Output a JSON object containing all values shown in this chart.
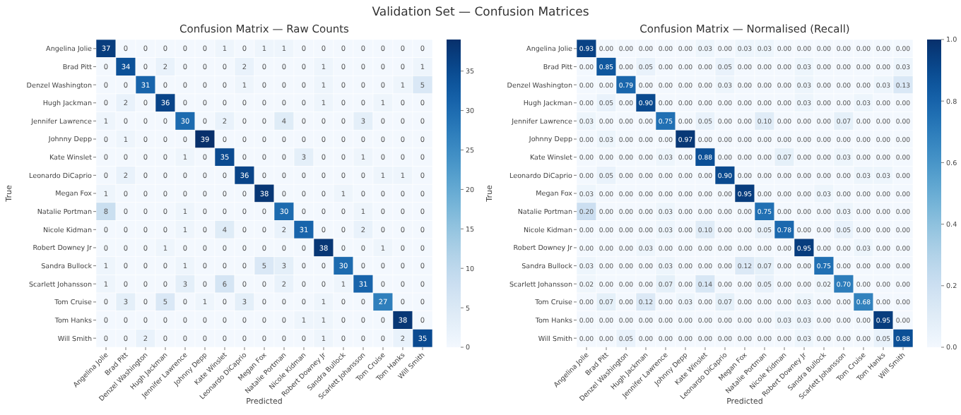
{
  "chart_data": [
    {
      "type": "heatmap",
      "title": "Confusion Matrix — Raw Counts",
      "xlabel": "Predicted",
      "ylabel": "True",
      "annotations": [
        "Validation Set — Confusion Matrices"
      ],
      "categories": [
        "Angelina Jolie",
        "Brad Pitt",
        "Denzel Washington",
        "Hugh Jackman",
        "Jennifer Lawrence",
        "Johnny Depp",
        "Kate Winslet",
        "Leonardo DiCaprio",
        "Megan Fox",
        "Natalie Portman",
        "Nicole Kidman",
        "Robert Downey Jr",
        "Sandra Bullock",
        "Scarlett Johansson",
        "Tom Cruise",
        "Tom Hanks",
        "Will Smith"
      ],
      "y_categories": [
        "Angelina Jolie",
        "Brad Pitt",
        "Denzel Washington",
        "Hugh Jackman",
        "Jennifer Lawrence",
        "Johnny Depp",
        "Kate Winslet",
        "Leonardo DiCaprio",
        "Megan Fox",
        "Natalie Portman",
        "Nicole Kidman",
        "Robert Downey Jr",
        "Sandra Bullock",
        "Scarlett Johansson",
        "Tom Cruise",
        "Tom Hanks",
        "Will Smith"
      ],
      "cells": [
        [
          37,
          0,
          0,
          0,
          0,
          0,
          1,
          0,
          1,
          1,
          0,
          0,
          0,
          0,
          0,
          0,
          0
        ],
        [
          0,
          34,
          0,
          2,
          0,
          0,
          0,
          2,
          0,
          0,
          0,
          1,
          0,
          0,
          0,
          0,
          1
        ],
        [
          0,
          0,
          31,
          0,
          0,
          0,
          0,
          1,
          0,
          0,
          0,
          1,
          0,
          0,
          0,
          1,
          5
        ],
        [
          0,
          2,
          0,
          36,
          0,
          0,
          0,
          0,
          0,
          0,
          0,
          1,
          0,
          0,
          1,
          0,
          0
        ],
        [
          1,
          0,
          0,
          0,
          30,
          0,
          2,
          0,
          0,
          4,
          0,
          0,
          0,
          3,
          0,
          0,
          0
        ],
        [
          0,
          1,
          0,
          0,
          0,
          39,
          0,
          0,
          0,
          0,
          0,
          0,
          0,
          0,
          0,
          0,
          0
        ],
        [
          0,
          0,
          0,
          0,
          1,
          0,
          35,
          0,
          0,
          0,
          3,
          0,
          0,
          1,
          0,
          0,
          0
        ],
        [
          0,
          2,
          0,
          0,
          0,
          0,
          0,
          36,
          0,
          0,
          0,
          0,
          0,
          0,
          1,
          1,
          0
        ],
        [
          1,
          0,
          0,
          0,
          0,
          0,
          0,
          0,
          38,
          0,
          0,
          0,
          1,
          0,
          0,
          0,
          0
        ],
        [
          8,
          0,
          0,
          0,
          1,
          0,
          0,
          0,
          0,
          30,
          0,
          0,
          0,
          1,
          0,
          0,
          0
        ],
        [
          0,
          0,
          0,
          0,
          1,
          0,
          4,
          0,
          0,
          2,
          31,
          0,
          0,
          2,
          0,
          0,
          0
        ],
        [
          0,
          0,
          0,
          1,
          0,
          0,
          0,
          0,
          0,
          0,
          0,
          38,
          0,
          0,
          1,
          0,
          0
        ],
        [
          1,
          0,
          0,
          0,
          1,
          0,
          0,
          0,
          5,
          3,
          0,
          0,
          30,
          0,
          0,
          0,
          0
        ],
        [
          1,
          0,
          0,
          0,
          3,
          0,
          6,
          0,
          0,
          2,
          0,
          0,
          1,
          31,
          0,
          0,
          0
        ],
        [
          0,
          3,
          0,
          5,
          0,
          1,
          0,
          3,
          0,
          0,
          0,
          1,
          0,
          0,
          27,
          0,
          0
        ],
        [
          0,
          0,
          0,
          0,
          0,
          0,
          0,
          0,
          0,
          0,
          1,
          1,
          0,
          0,
          0,
          38,
          0
        ],
        [
          0,
          0,
          2,
          0,
          0,
          0,
          0,
          0,
          0,
          0,
          0,
          1,
          0,
          0,
          0,
          2,
          35
        ]
      ],
      "data_labels": true,
      "clim": [
        0,
        39
      ],
      "cticks": [
        0,
        5,
        10,
        15,
        20,
        25,
        30,
        35
      ]
    },
    {
      "type": "heatmap",
      "title": "Confusion Matrix — Normalised (Recall)",
      "xlabel": "Predicted",
      "ylabel": "True",
      "categories": [
        "Angelina Jolie",
        "Brad Pitt",
        "Denzel Washington",
        "Hugh Jackman",
        "Jennifer Lawrence",
        "Johnny Depp",
        "Kate Winslet",
        "Leonardo DiCaprio",
        "Megan Fox",
        "Natalie Portman",
        "Nicole Kidman",
        "Robert Downey Jr",
        "Sandra Bullock",
        "Scarlett Johansson",
        "Tom Cruise",
        "Tom Hanks",
        "Will Smith"
      ],
      "y_categories": [
        "Angelina Jolie",
        "Brad Pitt",
        "Denzel Washington",
        "Hugh Jackman",
        "Jennifer Lawrence",
        "Johnny Depp",
        "Kate Winslet",
        "Leonardo DiCaprio",
        "Megan Fox",
        "Natalie Portman",
        "Nicole Kidman",
        "Robert Downey Jr",
        "Sandra Bullock",
        "Scarlett Johansson",
        "Tom Cruise",
        "Tom Hanks",
        "Will Smith"
      ],
      "cells": [
        [
          0.93,
          0,
          0,
          0,
          0,
          0,
          0.03,
          0,
          0.03,
          0.03,
          0,
          0,
          0,
          0,
          0,
          0,
          0
        ],
        [
          0,
          0.85,
          0,
          0.05,
          0,
          0,
          0,
          0.05,
          0,
          0,
          0,
          0.03,
          0,
          0,
          0,
          0,
          0.03
        ],
        [
          0,
          0,
          0.79,
          0,
          0,
          0,
          0,
          0.03,
          0,
          0,
          0,
          0.03,
          0,
          0,
          0,
          0.03,
          0.13
        ],
        [
          0,
          0.05,
          0,
          0.9,
          0,
          0,
          0,
          0,
          0,
          0,
          0,
          0.03,
          0,
          0,
          0.03,
          0,
          0
        ],
        [
          0.03,
          0,
          0,
          0,
          0.75,
          0,
          0.05,
          0,
          0,
          0.1,
          0,
          0,
          0,
          0.07,
          0,
          0,
          0
        ],
        [
          0,
          0.03,
          0,
          0,
          0,
          0.97,
          0,
          0,
          0,
          0,
          0,
          0,
          0,
          0,
          0,
          0,
          0
        ],
        [
          0,
          0,
          0,
          0,
          0.03,
          0,
          0.88,
          0,
          0,
          0,
          0.07,
          0,
          0,
          0.03,
          0,
          0,
          0
        ],
        [
          0,
          0.05,
          0,
          0,
          0,
          0,
          0,
          0.9,
          0,
          0,
          0,
          0,
          0,
          0,
          0.03,
          0.03,
          0
        ],
        [
          0.03,
          0,
          0,
          0,
          0,
          0,
          0,
          0,
          0.95,
          0,
          0,
          0,
          0.03,
          0,
          0,
          0,
          0
        ],
        [
          0.2,
          0,
          0,
          0,
          0.03,
          0,
          0,
          0,
          0,
          0.75,
          0,
          0,
          0,
          0.03,
          0,
          0,
          0
        ],
        [
          0,
          0,
          0,
          0,
          0.03,
          0,
          0.1,
          0,
          0,
          0.05,
          0.78,
          0,
          0,
          0.05,
          0,
          0,
          0
        ],
        [
          0,
          0,
          0,
          0.03,
          0,
          0,
          0,
          0,
          0,
          0,
          0,
          0.95,
          0,
          0,
          0.03,
          0,
          0
        ],
        [
          0.03,
          0,
          0,
          0,
          0.03,
          0,
          0,
          0,
          0.12,
          0.07,
          0,
          0,
          0.75,
          0,
          0,
          0,
          0
        ],
        [
          0.02,
          0,
          0,
          0,
          0.07,
          0,
          0.14,
          0,
          0,
          0.05,
          0,
          0,
          0.02,
          0.7,
          0,
          0,
          0
        ],
        [
          0,
          0.07,
          0,
          0.12,
          0,
          0.03,
          0,
          0.07,
          0,
          0,
          0,
          0.03,
          0,
          0,
          0.68,
          0,
          0
        ],
        [
          0,
          0,
          0,
          0,
          0,
          0,
          0,
          0,
          0,
          0,
          0.03,
          0.03,
          0,
          0,
          0,
          0.95,
          0
        ],
        [
          0,
          0,
          0.05,
          0,
          0,
          0,
          0,
          0,
          0,
          0,
          0,
          0.03,
          0,
          0,
          0,
          0.05,
          0.88
        ]
      ],
      "cell_labels": [
        [
          "0.93",
          "0.00",
          "0.00",
          "0.00",
          "0.00",
          "0.00",
          "0.03",
          "0.00",
          "0.03",
          "0.03",
          "0.00",
          "0.00",
          "0.00",
          "0.00",
          "0.00",
          "0.00",
          "0.00"
        ],
        [
          "0.00",
          "0.85",
          "0.00",
          "0.05",
          "0.00",
          "0.00",
          "0.00",
          "0.05",
          "0.00",
          "0.00",
          "0.00",
          "0.03",
          "0.00",
          "0.00",
          "0.00",
          "0.00",
          "0.03"
        ],
        [
          "0.00",
          "0.00",
          "0.79",
          "0.00",
          "0.00",
          "0.00",
          "0.00",
          "0.03",
          "0.00",
          "0.00",
          "0.00",
          "0.03",
          "0.00",
          "0.00",
          "0.00",
          "0.03",
          "0.13"
        ],
        [
          "0.00",
          "0.05",
          "0.00",
          "0.90",
          "0.00",
          "0.00",
          "0.00",
          "0.00",
          "0.00",
          "0.00",
          "0.00",
          "0.03",
          "0.00",
          "0.00",
          "0.03",
          "0.00",
          "0.00"
        ],
        [
          "0.03",
          "0.00",
          "0.00",
          "0.00",
          "0.75",
          "0.00",
          "0.05",
          "0.00",
          "0.00",
          "0.10",
          "0.00",
          "0.00",
          "0.00",
          "0.07",
          "0.00",
          "0.00",
          "0.00"
        ],
        [
          "0.00",
          "0.03",
          "0.00",
          "0.00",
          "0.00",
          "0.97",
          "0.00",
          "0.00",
          "0.00",
          "0.00",
          "0.00",
          "0.00",
          "0.00",
          "0.00",
          "0.00",
          "0.00",
          "0.00"
        ],
        [
          "0.00",
          "0.00",
          "0.00",
          "0.00",
          "0.03",
          "0.00",
          "0.88",
          "0.00",
          "0.00",
          "0.00",
          "0.07",
          "0.00",
          "0.00",
          "0.03",
          "0.00",
          "0.00",
          "0.00"
        ],
        [
          "0.00",
          "0.05",
          "0.00",
          "0.00",
          "0.00",
          "0.00",
          "0.00",
          "0.90",
          "0.00",
          "0.00",
          "0.00",
          "0.00",
          "0.00",
          "0.00",
          "0.03",
          "0.03",
          "0.00"
        ],
        [
          "0.03",
          "0.00",
          "0.00",
          "0.00",
          "0.00",
          "0.00",
          "0.00",
          "0.00",
          "0.95",
          "0.00",
          "0.00",
          "0.00",
          "0.03",
          "0.00",
          "0.00",
          "0.00",
          "0.00"
        ],
        [
          "0.20",
          "0.00",
          "0.00",
          "0.00",
          "0.03",
          "0.00",
          "0.00",
          "0.00",
          "0.00",
          "0.75",
          "0.00",
          "0.00",
          "0.00",
          "0.03",
          "0.00",
          "0.00",
          "0.00"
        ],
        [
          "0.00",
          "0.00",
          "0.00",
          "0.00",
          "0.03",
          "0.00",
          "0.10",
          "0.00",
          "0.00",
          "0.05",
          "0.78",
          "0.00",
          "0.00",
          "0.05",
          "0.00",
          "0.00",
          "0.00"
        ],
        [
          "0.00",
          "0.00",
          "0.00",
          "0.03",
          "0.00",
          "0.00",
          "0.00",
          "0.00",
          "0.00",
          "0.00",
          "0.00",
          "0.95",
          "0.00",
          "0.00",
          "0.03",
          "0.00",
          "0.00"
        ],
        [
          "0.03",
          "0.00",
          "0.00",
          "0.00",
          "0.03",
          "0.00",
          "0.00",
          "0.00",
          "0.12",
          "0.07",
          "0.00",
          "0.00",
          "0.75",
          "0.00",
          "0.00",
          "0.00",
          "0.00"
        ],
        [
          "0.02",
          "0.00",
          "0.00",
          "0.00",
          "0.07",
          "0.00",
          "0.14",
          "0.00",
          "0.00",
          "0.05",
          "0.00",
          "0.00",
          "0.02",
          "0.70",
          "0.00",
          "0.00",
          "0.00"
        ],
        [
          "0.00",
          "0.07",
          "0.00",
          "0.12",
          "0.00",
          "0.03",
          "0.00",
          "0.07",
          "0.00",
          "0.00",
          "0.00",
          "0.03",
          "0.00",
          "0.00",
          "0.68",
          "0.00",
          "0.00"
        ],
        [
          "0.00",
          "0.00",
          "0.00",
          "0.00",
          "0.00",
          "0.00",
          "0.00",
          "0.00",
          "0.00",
          "0.00",
          "0.03",
          "0.03",
          "0.00",
          "0.00",
          "0.00",
          "0.95",
          "0.00"
        ],
        [
          "0.00",
          "0.00",
          "0.05",
          "0.00",
          "0.00",
          "0.00",
          "0.00",
          "0.00",
          "0.00",
          "0.00",
          "0.00",
          "0.03",
          "0.00",
          "0.00",
          "0.00",
          "0.05",
          "0.88"
        ]
      ],
      "clim": [
        0,
        1
      ],
      "cticks": [
        {
          "value": 0,
          "label": "0.0"
        },
        {
          "value": 0.2,
          "label": "0.2"
        },
        {
          "value": 0.4,
          "label": "0.4"
        },
        {
          "value": 0.6,
          "label": "0.6"
        },
        {
          "value": 0.8,
          "label": "0.8"
        },
        {
          "value": 1,
          "label": "1.0"
        }
      ]
    }
  ]
}
